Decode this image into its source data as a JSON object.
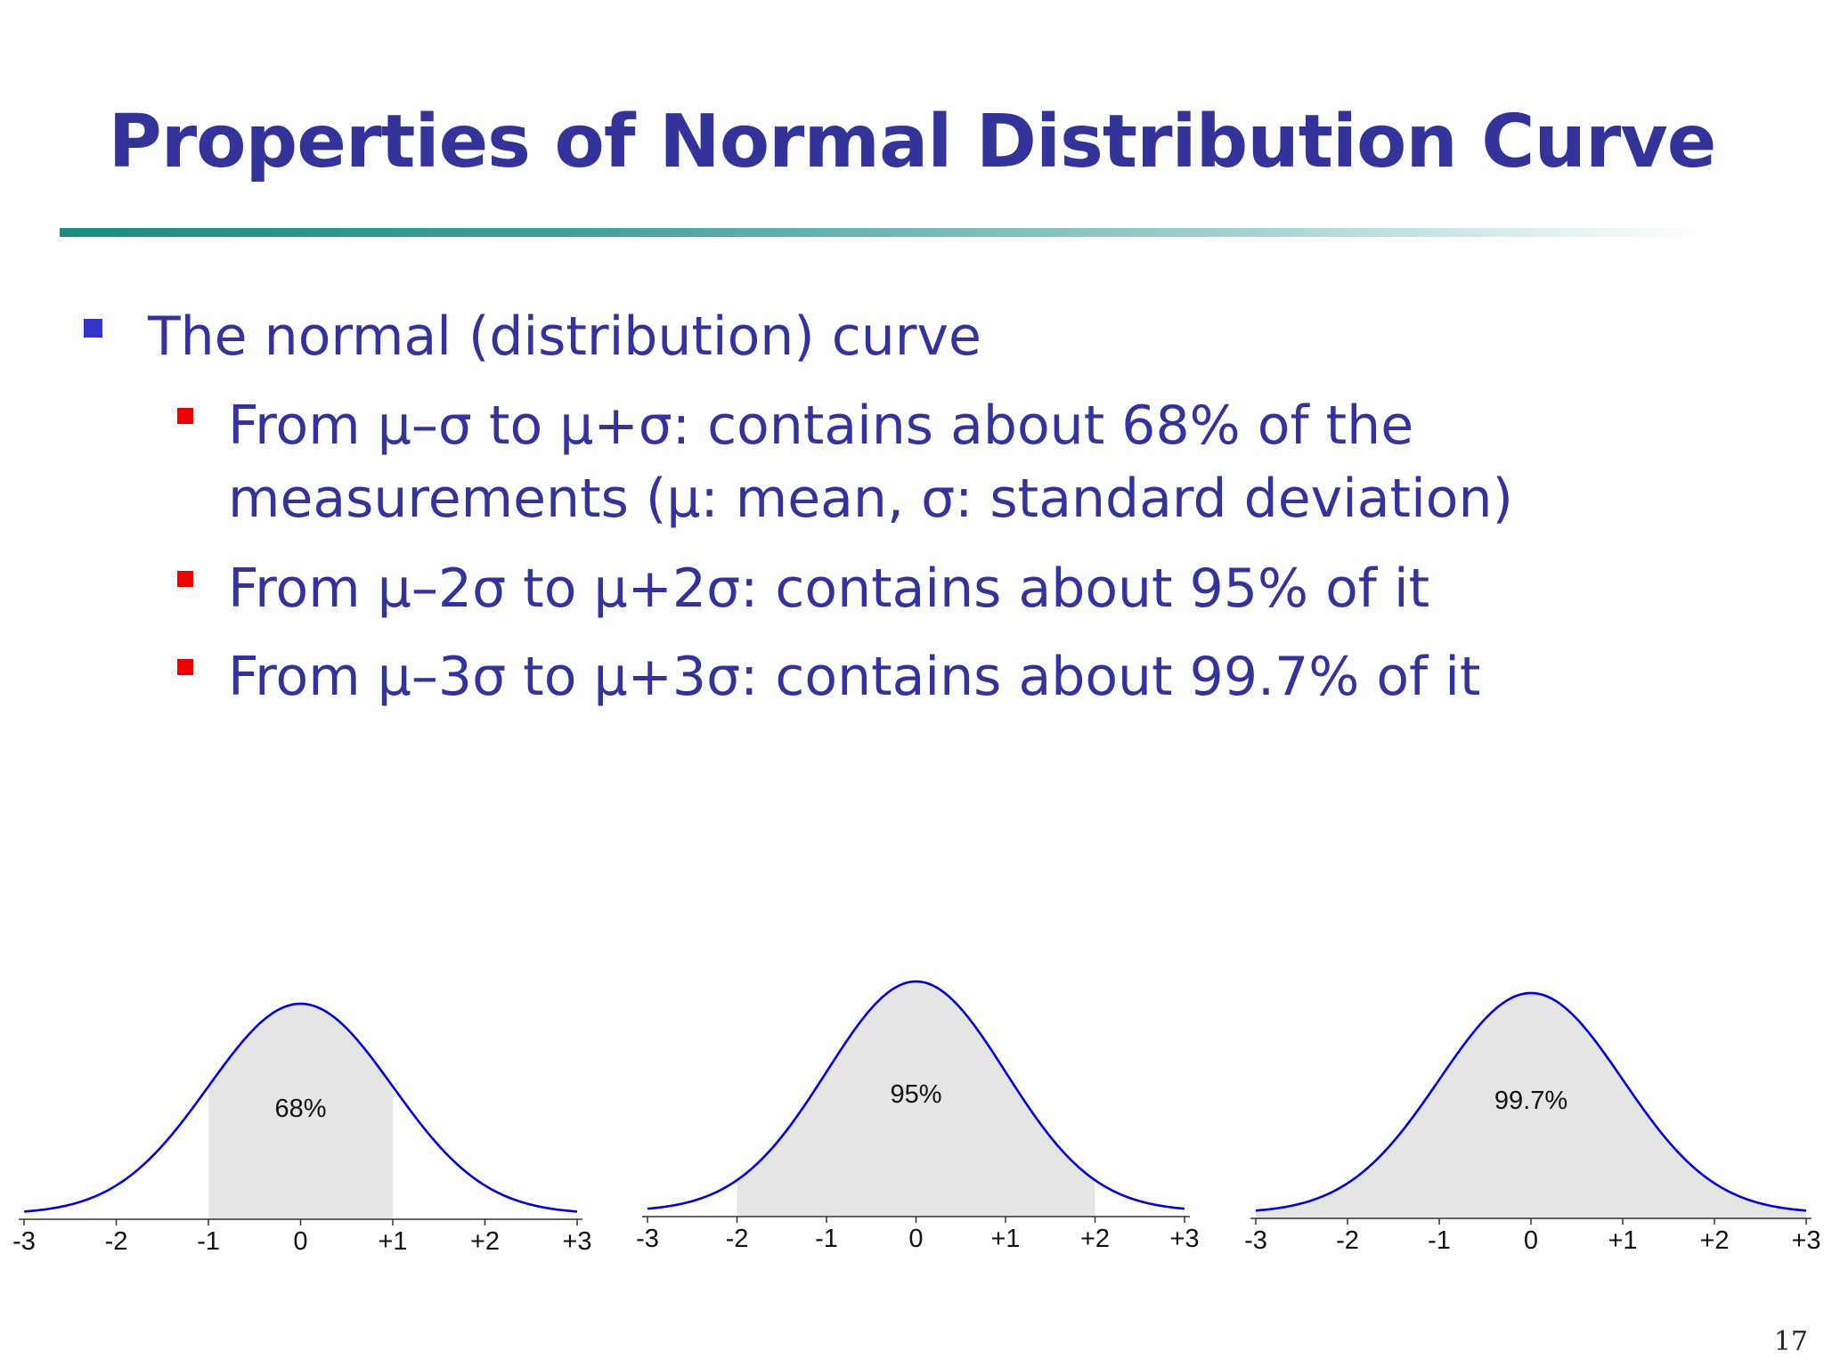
{
  "slide": {
    "title": "Properties of Normal Distribution Curve",
    "page_number": "17"
  },
  "bullets": {
    "main": "The normal (distribution) curve",
    "sub1_line1": "From μ–σ to μ+σ: contains about 68% of the",
    "sub1_line2": "measurements  (μ: mean, σ: standard deviation)",
    "sub2": " From μ–2σ to μ+2σ: contains about 95% of it",
    "sub3": "From μ–3σ to μ+3σ: contains about 99.7% of it"
  },
  "colors": {
    "title": "#333399",
    "text": "#333399",
    "bullet_main": "#3333cc",
    "bullet_sub": "#ee0000",
    "curve": "#0000cc",
    "shade": "#e5e5e5"
  },
  "chart_data": [
    {
      "type": "area",
      "distribution": "standard normal",
      "xlim": [
        -3,
        3
      ],
      "tick_labels": [
        "-3",
        "-2",
        "-1",
        "0",
        "+1",
        "+2",
        "+3"
      ],
      "shaded_range": [
        -1,
        1
      ],
      "annotation": "68%"
    },
    {
      "type": "area",
      "distribution": "standard normal",
      "xlim": [
        -3,
        3
      ],
      "tick_labels": [
        "-3",
        "-2",
        "-1",
        "0",
        "+1",
        "+2",
        "+3"
      ],
      "shaded_range": [
        -2,
        2
      ],
      "annotation": "95%"
    },
    {
      "type": "area",
      "distribution": "standard normal",
      "xlim": [
        -3,
        3
      ],
      "tick_labels": [
        "-3",
        "-2",
        "-1",
        "0",
        "+1",
        "+2",
        "+3"
      ],
      "shaded_range": [
        -3,
        3
      ],
      "annotation": "99.7%"
    }
  ]
}
